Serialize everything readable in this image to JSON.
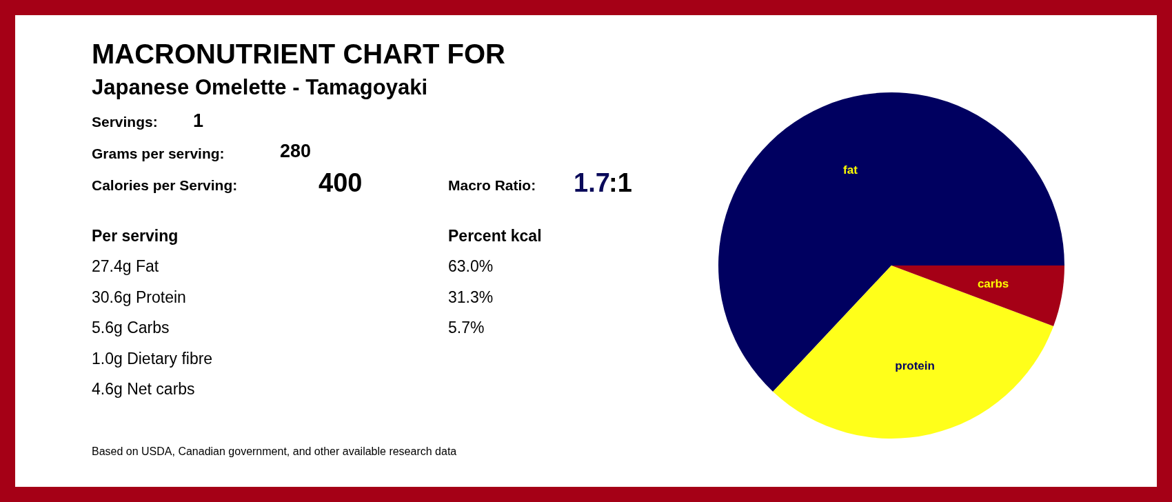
{
  "chart_data": {
    "type": "pie",
    "title": "MACRONUTRIENT CHART FOR",
    "subtitle": "Japanese Omelette - Tamagoyaki",
    "categories": [
      "fat",
      "protein",
      "carbs"
    ],
    "values": [
      63.0,
      31.3,
      5.7
    ],
    "colors": [
      "#000060",
      "#ffff1a",
      "#a50016"
    ],
    "annotations": [
      "Servings:",
      "1",
      "Grams per serving:",
      "280",
      "Calories per Serving:",
      "400",
      "Macro Ratio:",
      "1.7",
      ":1",
      "Per serving",
      "27.4g Fat",
      "30.6g Protein",
      "5.6g Carbs",
      "1.0g Dietary fibre",
      "4.6g Net carbs",
      "Percent kcal",
      "63.0%",
      "31.3%",
      "5.7%",
      "Based on USDA, Canadian government, and other available research data"
    ]
  }
}
